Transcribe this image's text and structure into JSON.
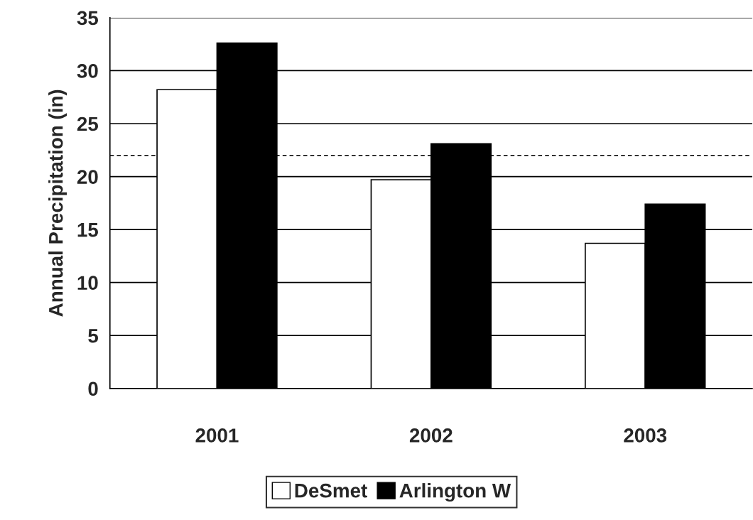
{
  "chart_data": {
    "type": "bar",
    "ylabel": "Annual Precipitation (in)",
    "categories": [
      "2001",
      "2002",
      "2003"
    ],
    "series": [
      {
        "name": "DeSmet",
        "color": "#ffffff",
        "values": [
          28.2,
          19.7,
          13.7
        ]
      },
      {
        "name": "Arlington W",
        "color": "#000000",
        "values": [
          32.6,
          23.1,
          17.4
        ]
      }
    ],
    "ylim": [
      0,
      35
    ],
    "yticks": [
      0,
      5,
      10,
      15,
      20,
      25,
      30,
      35
    ],
    "grid": "y",
    "legend": "bottom",
    "ref_lines": [
      {
        "axis": "y",
        "value": 22,
        "line_style": "dashed",
        "color": "#000000"
      }
    ]
  }
}
